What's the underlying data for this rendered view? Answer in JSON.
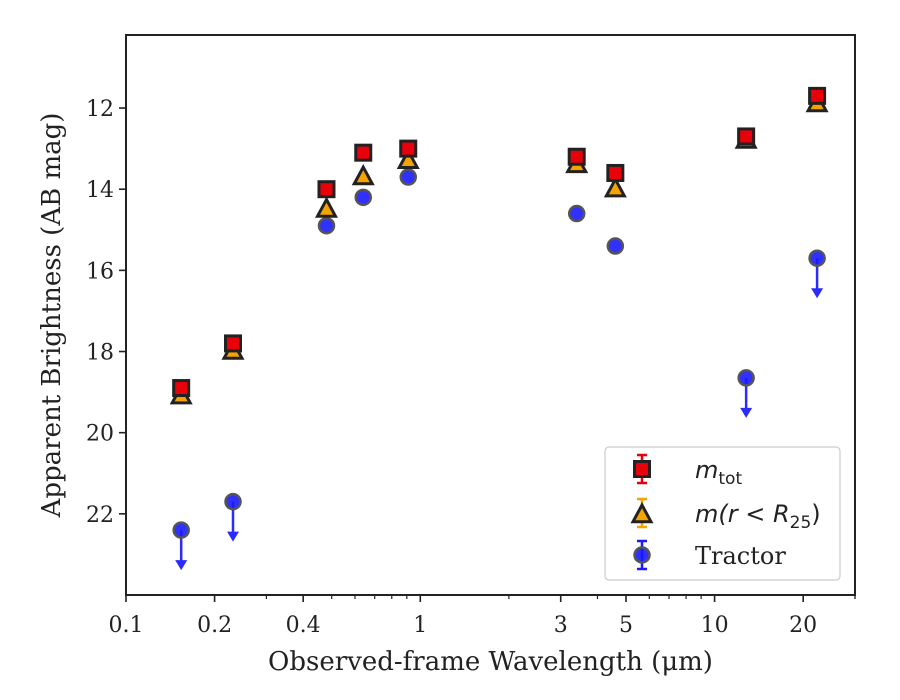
{
  "chart_data": {
    "type": "scatter",
    "xlabel": "Observed-frame Wavelength (μm)",
    "ylabel": "Apparent Brightness (AB mag)",
    "xscale": "log",
    "xlim": [
      0.1,
      30
    ],
    "ylim": [
      24.0,
      10.2
    ],
    "y_inverted": true,
    "x_ticks": [
      {
        "value": 0.1,
        "label": "0.1"
      },
      {
        "value": 0.2,
        "label": "0.2"
      },
      {
        "value": 0.4,
        "label": "0.4"
      },
      {
        "value": 1,
        "label": "1"
      },
      {
        "value": 3,
        "label": "3"
      },
      {
        "value": 5,
        "label": "5"
      },
      {
        "value": 10,
        "label": "10"
      },
      {
        "value": 20,
        "label": "20"
      }
    ],
    "y_ticks": [
      {
        "value": 12,
        "label": "12"
      },
      {
        "value": 14,
        "label": "14"
      },
      {
        "value": 16,
        "label": "16"
      },
      {
        "value": 18,
        "label": "18"
      },
      {
        "value": 20,
        "label": "20"
      },
      {
        "value": 22,
        "label": "22"
      }
    ],
    "grid": false,
    "legend_position": "lower-right",
    "series": [
      {
        "name": "m_tot",
        "legend_main": "m",
        "legend_sub": "tot",
        "marker": "square",
        "color": "#e8000b",
        "x": [
          0.154,
          0.231,
          0.48,
          0.64,
          0.91,
          3.4,
          4.6,
          12.8,
          22.3
        ],
        "y": [
          18.9,
          17.8,
          14.0,
          13.1,
          13.0,
          13.2,
          13.6,
          12.7,
          11.7
        ]
      },
      {
        "name": "m(r < R_25)",
        "legend_main": "m(r < R",
        "legend_sub": "25",
        "legend_tail": ")",
        "marker": "triangle",
        "color": "#f5a300",
        "x": [
          0.154,
          0.231,
          0.48,
          0.64,
          0.91,
          3.4,
          4.6,
          12.8,
          22.3
        ],
        "y": [
          19.1,
          18.0,
          14.5,
          13.7,
          13.3,
          13.4,
          14.0,
          12.8,
          11.9
        ]
      },
      {
        "name": "Tractor",
        "legend_main": "Tractor",
        "marker": "circle",
        "color": "#1a1aff",
        "x": [
          0.154,
          0.231,
          0.48,
          0.64,
          0.91,
          3.4,
          4.6,
          12.8,
          22.3
        ],
        "y": [
          22.4,
          21.7,
          14.9,
          14.2,
          13.7,
          14.6,
          15.4,
          18.65,
          15.7
        ],
        "upper_limit": [
          true,
          true,
          false,
          false,
          false,
          false,
          false,
          true,
          true
        ]
      }
    ],
    "arrow_color": "#2b2bff"
  }
}
